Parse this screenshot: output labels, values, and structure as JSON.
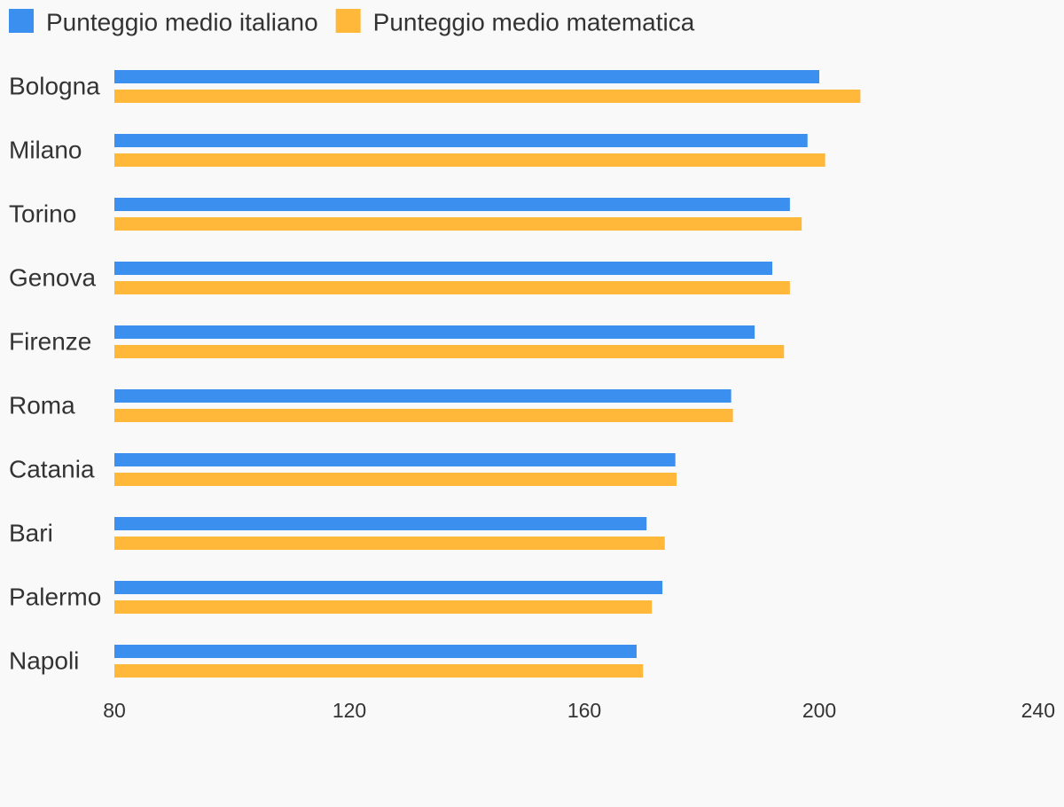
{
  "chart_data": {
    "type": "bar",
    "orientation": "horizontal",
    "categories": [
      "Bologna",
      "Milano",
      "Torino",
      "Genova",
      "Firenze",
      "Roma",
      "Catania",
      "Bari",
      "Palermo",
      "Napoli"
    ],
    "series": [
      {
        "name": "Punteggio medio italiano",
        "color": "#3a8fef",
        "values": [
          200,
          198,
          195,
          192,
          189,
          185,
          175.5,
          170.6,
          173.3,
          168.9
        ]
      },
      {
        "name": "Punteggio medio matematica",
        "color": "#ffb83a",
        "values": [
          207,
          201,
          197,
          195,
          194,
          185.3,
          175.7,
          173.7,
          171.5,
          170
        ]
      }
    ],
    "xlim": [
      80,
      240
    ],
    "xticks": [
      80,
      120,
      160,
      200,
      240
    ],
    "grid": false,
    "legend": "top-left"
  }
}
